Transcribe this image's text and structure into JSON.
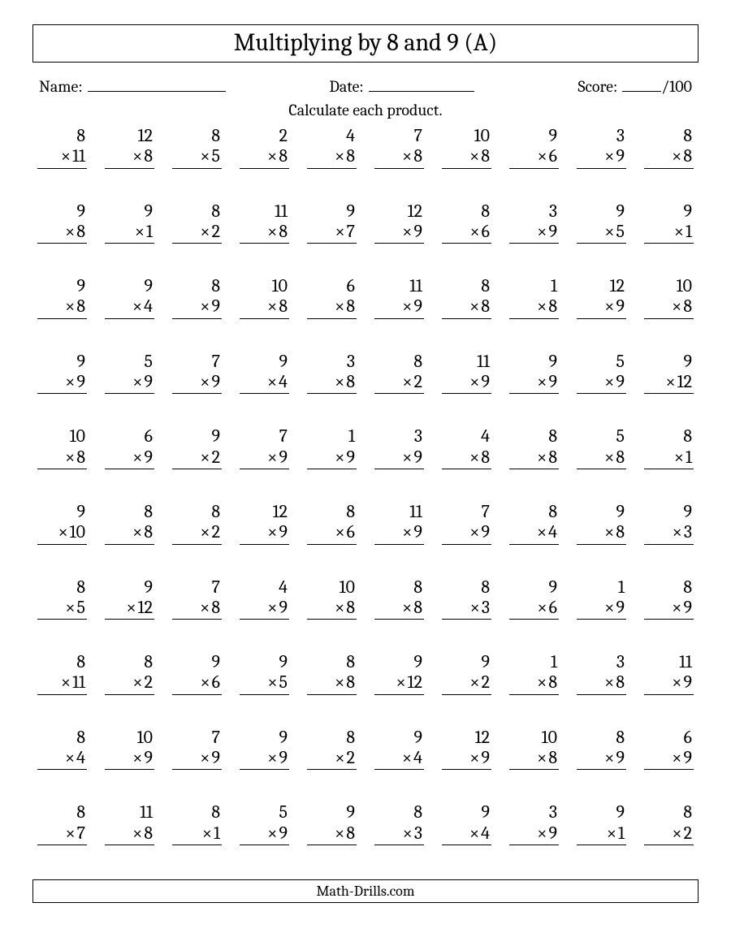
{
  "title": "Multiplying by 8 and 9 (A)",
  "labels": {
    "name": "Name:",
    "date": "Date:",
    "score": "Score:",
    "score_denom": "/100"
  },
  "instruction": "Calculate each product.",
  "times_symbol": "×",
  "footer": "Math-Drills.com",
  "style": {
    "columns": 10,
    "rows": 10,
    "font_family": "Cambria, Georgia, 'Times New Roman', serif",
    "title_fontsize": 30,
    "body_fontsize": 20,
    "problem_fontsize": 22,
    "border_color": "#000000",
    "background_color": "#ffffff",
    "text_color": "#000000"
  },
  "problems": [
    [
      [
        8,
        11
      ],
      [
        12,
        8
      ],
      [
        8,
        5
      ],
      [
        2,
        8
      ],
      [
        4,
        8
      ],
      [
        7,
        8
      ],
      [
        10,
        8
      ],
      [
        9,
        6
      ],
      [
        3,
        9
      ],
      [
        8,
        8
      ]
    ],
    [
      [
        9,
        8
      ],
      [
        9,
        1
      ],
      [
        8,
        2
      ],
      [
        11,
        8
      ],
      [
        9,
        7
      ],
      [
        12,
        9
      ],
      [
        8,
        6
      ],
      [
        3,
        9
      ],
      [
        9,
        5
      ],
      [
        9,
        1
      ]
    ],
    [
      [
        9,
        8
      ],
      [
        9,
        4
      ],
      [
        8,
        9
      ],
      [
        10,
        8
      ],
      [
        6,
        8
      ],
      [
        11,
        9
      ],
      [
        8,
        8
      ],
      [
        1,
        8
      ],
      [
        12,
        9
      ],
      [
        10,
        8
      ]
    ],
    [
      [
        9,
        9
      ],
      [
        5,
        9
      ],
      [
        7,
        9
      ],
      [
        9,
        4
      ],
      [
        3,
        8
      ],
      [
        8,
        2
      ],
      [
        11,
        9
      ],
      [
        9,
        9
      ],
      [
        5,
        9
      ],
      [
        9,
        12
      ]
    ],
    [
      [
        10,
        8
      ],
      [
        6,
        9
      ],
      [
        9,
        2
      ],
      [
        7,
        9
      ],
      [
        1,
        9
      ],
      [
        3,
        9
      ],
      [
        4,
        8
      ],
      [
        8,
        8
      ],
      [
        5,
        8
      ],
      [
        8,
        1
      ]
    ],
    [
      [
        9,
        10
      ],
      [
        8,
        8
      ],
      [
        8,
        2
      ],
      [
        12,
        9
      ],
      [
        8,
        6
      ],
      [
        11,
        9
      ],
      [
        7,
        9
      ],
      [
        8,
        4
      ],
      [
        9,
        8
      ],
      [
        9,
        3
      ]
    ],
    [
      [
        8,
        5
      ],
      [
        9,
        12
      ],
      [
        7,
        8
      ],
      [
        4,
        9
      ],
      [
        10,
        8
      ],
      [
        8,
        8
      ],
      [
        8,
        3
      ],
      [
        9,
        6
      ],
      [
        1,
        9
      ],
      [
        8,
        9
      ]
    ],
    [
      [
        8,
        11
      ],
      [
        8,
        2
      ],
      [
        9,
        6
      ],
      [
        9,
        5
      ],
      [
        8,
        8
      ],
      [
        9,
        12
      ],
      [
        9,
        2
      ],
      [
        1,
        8
      ],
      [
        3,
        8
      ],
      [
        11,
        9
      ]
    ],
    [
      [
        8,
        4
      ],
      [
        10,
        9
      ],
      [
        7,
        9
      ],
      [
        9,
        9
      ],
      [
        8,
        2
      ],
      [
        9,
        4
      ],
      [
        12,
        9
      ],
      [
        10,
        8
      ],
      [
        8,
        9
      ],
      [
        6,
        9
      ]
    ],
    [
      [
        8,
        7
      ],
      [
        11,
        8
      ],
      [
        8,
        1
      ],
      [
        5,
        9
      ],
      [
        9,
        8
      ],
      [
        8,
        3
      ],
      [
        9,
        4
      ],
      [
        3,
        9
      ],
      [
        9,
        1
      ],
      [
        8,
        2
      ]
    ]
  ]
}
